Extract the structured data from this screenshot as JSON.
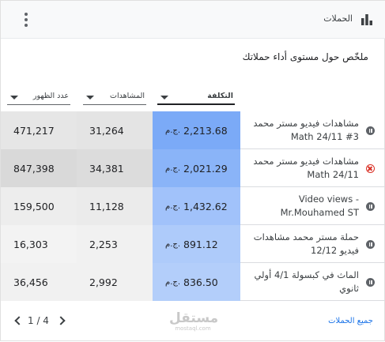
{
  "header": {
    "title": "الحملات",
    "icon": "bar-chart-icon"
  },
  "summary": "ملخّص حول مستوى أداء حملاتك",
  "columns": {
    "impressions": "عدد الظهور",
    "views": "المشاهدات",
    "cost": "التكلفة"
  },
  "currency": "ج.م.",
  "rows": [
    {
      "name": "مشاهدات فيديو مستر محمد Math 24/11 #3",
      "status": "paused",
      "cost": "2,213.68",
      "views": "31,264",
      "impressions": "471,217"
    },
    {
      "name": "مشاهدات فيديو مستر محمد Math 24/11",
      "status": "removed",
      "cost": "2,021.29",
      "views": "34,381",
      "impressions": "847,398"
    },
    {
      "name": "Video views - Mr.Mouhamed ST",
      "status": "paused",
      "cost": "1,432.62",
      "views": "11,128",
      "impressions": "159,500"
    },
    {
      "name": "حملة مستر محمد مشاهدات فيديو 12/12",
      "status": "paused",
      "cost": "891.12",
      "views": "2,253",
      "impressions": "16,303"
    },
    {
      "name": "الماث في كبسولة 4/1 أولي ثانوي",
      "status": "paused",
      "cost": "836.50",
      "views": "2,992",
      "impressions": "36,456"
    }
  ],
  "row_colors": {
    "cost": [
      "#7baaf7",
      "#8ab4f8",
      "#a1c2fa",
      "#aecbfa",
      "#b3cefa"
    ],
    "views": [
      "#e4e4e4",
      "#dcdcdc",
      "#ebebeb",
      "#f1f1f1",
      "#f1f1f1"
    ],
    "impressions": [
      "#e6e6e6",
      "#d9d9d9",
      "#ededed",
      "#f3f3f3",
      "#f1f1f1"
    ]
  },
  "footer": {
    "all_campaigns": "جميع الحملات",
    "pagination": "1 / 4"
  },
  "watermark": {
    "arabic": "مستقل",
    "latin": "mostaql.com"
  }
}
